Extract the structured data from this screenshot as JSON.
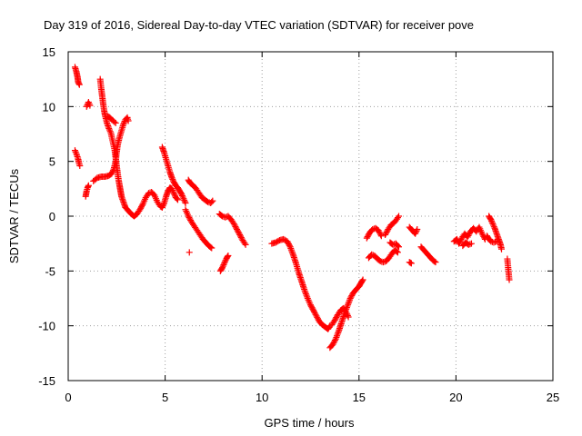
{
  "chart_data": {
    "type": "scatter",
    "title": "Day 319 of 2016, Sidereal Day-to-day VTEC variation (SDTVAR) for receiver pove",
    "xlabel": "GPS time / hours",
    "ylabel": "SDTVAR / TECUs",
    "xlim": [
      0,
      25
    ],
    "ylim": [
      -15,
      15
    ],
    "xticks": [
      "0",
      "5",
      "10",
      "15",
      "20",
      "25"
    ],
    "yticks": [
      "15",
      "10",
      "5",
      "0",
      "-5",
      "-10",
      "-15"
    ],
    "grid": true,
    "marker": "+",
    "color": "#ff0000",
    "series": [
      {
        "name": "SDTVAR",
        "segments": [
          [
            [
              0.35,
              13.6
            ],
            [
              0.42,
              13.2
            ],
            [
              0.48,
              12.7
            ],
            [
              0.52,
              12.2
            ],
            [
              0.58,
              12.0
            ]
          ],
          [
            [
              0.35,
              6.0
            ],
            [
              0.42,
              5.7
            ],
            [
              0.5,
              5.3
            ],
            [
              0.55,
              4.9
            ],
            [
              0.6,
              4.6
            ]
          ],
          [
            [
              0.9,
              1.8
            ],
            [
              0.95,
              2.3
            ],
            [
              1.0,
              2.6
            ],
            [
              1.05,
              2.8
            ]
          ],
          [
            [
              0.95,
              10.0
            ],
            [
              1.05,
              10.4
            ],
            [
              1.12,
              10.1
            ]
          ],
          [
            [
              1.3,
              3.2
            ],
            [
              1.5,
              3.5
            ],
            [
              1.7,
              3.6
            ],
            [
              1.9,
              3.6
            ],
            [
              2.1,
              3.7
            ],
            [
              2.25,
              3.9
            ],
            [
              2.35,
              4.3
            ],
            [
              2.45,
              5.0
            ],
            [
              2.5,
              5.8
            ],
            [
              2.55,
              6.5
            ],
            [
              2.65,
              7.2
            ],
            [
              2.75,
              7.8
            ],
            [
              2.85,
              8.4
            ],
            [
              2.95,
              8.8
            ],
            [
              3.05,
              9.0
            ],
            [
              3.1,
              8.7
            ]
          ],
          [
            [
              1.65,
              12.5
            ],
            [
              1.7,
              11.7
            ],
            [
              1.75,
              11.0
            ],
            [
              1.8,
              10.3
            ],
            [
              1.85,
              9.7
            ],
            [
              1.9,
              9.2
            ],
            [
              2.0,
              8.5
            ],
            [
              2.1,
              8.0
            ],
            [
              2.2,
              7.6
            ],
            [
              2.3,
              6.8
            ],
            [
              2.4,
              6.0
            ],
            [
              2.45,
              5.3
            ],
            [
              2.5,
              4.6
            ],
            [
              2.55,
              3.9
            ],
            [
              2.6,
              3.3
            ],
            [
              2.65,
              2.8
            ],
            [
              2.7,
              2.3
            ],
            [
              2.75,
              1.8
            ],
            [
              2.85,
              1.3
            ],
            [
              2.95,
              0.8
            ],
            [
              3.1,
              0.5
            ],
            [
              3.25,
              0.2
            ],
            [
              3.4,
              0.0
            ],
            [
              3.55,
              0.2
            ],
            [
              3.7,
              0.6
            ],
            [
              3.85,
              1.1
            ],
            [
              4.0,
              1.7
            ],
            [
              4.15,
              2.1
            ],
            [
              4.3,
              2.2
            ],
            [
              4.45,
              1.9
            ],
            [
              4.6,
              1.3
            ],
            [
              4.75,
              0.9
            ],
            [
              4.85,
              0.8
            ],
            [
              4.95,
              1.2
            ],
            [
              5.05,
              1.8
            ],
            [
              5.15,
              2.3
            ],
            [
              5.25,
              2.6
            ],
            [
              5.35,
              2.5
            ],
            [
              5.45,
              2.1
            ],
            [
              5.55,
              1.7
            ],
            [
              5.65,
              1.5
            ]
          ],
          [
            [
              2.05,
              9.1
            ],
            [
              2.15,
              9.0
            ],
            [
              2.25,
              8.8
            ],
            [
              2.45,
              8.5
            ]
          ],
          [
            [
              4.85,
              6.3
            ],
            [
              4.95,
              5.8
            ],
            [
              5.05,
              5.2
            ],
            [
              5.15,
              4.6
            ],
            [
              5.25,
              4.0
            ],
            [
              5.35,
              3.5
            ],
            [
              5.45,
              3.1
            ],
            [
              5.55,
              2.8
            ],
            [
              5.65,
              2.6
            ],
            [
              5.75,
              2.3
            ],
            [
              5.85,
              2.0
            ],
            [
              5.95,
              1.6
            ],
            [
              6.05,
              1.2
            ]
          ],
          [
            [
              6.2,
              3.3
            ],
            [
              6.3,
              3.0
            ],
            [
              6.45,
              2.8
            ],
            [
              6.6,
              2.5
            ],
            [
              6.75,
              2.1
            ],
            [
              6.9,
              1.7
            ],
            [
              7.05,
              1.5
            ],
            [
              7.2,
              1.3
            ],
            [
              7.35,
              1.2
            ],
            [
              7.45,
              1.4
            ]
          ],
          [
            [
              6.05,
              0.6
            ],
            [
              6.2,
              0.0
            ],
            [
              6.35,
              -0.5
            ],
            [
              6.5,
              -0.9
            ],
            [
              6.65,
              -1.3
            ],
            [
              6.8,
              -1.7
            ],
            [
              6.95,
              -2.1
            ],
            [
              7.1,
              -2.4
            ],
            [
              7.25,
              -2.7
            ],
            [
              7.4,
              -2.9
            ]
          ],
          [
            [
              6.25,
              -3.3
            ]
          ],
          [
            [
              7.8,
              0.2
            ],
            [
              7.95,
              0.0
            ],
            [
              8.1,
              -0.1
            ],
            [
              8.25,
              0.0
            ],
            [
              8.4,
              -0.3
            ],
            [
              8.55,
              -0.7
            ],
            [
              8.7,
              -1.2
            ],
            [
              8.85,
              -1.7
            ],
            [
              9.0,
              -2.2
            ],
            [
              9.15,
              -2.6
            ]
          ],
          [
            [
              7.85,
              -5.0
            ],
            [
              7.95,
              -4.7
            ],
            [
              8.05,
              -4.3
            ],
            [
              8.15,
              -3.9
            ],
            [
              8.25,
              -3.6
            ]
          ],
          [
            [
              10.5,
              -2.5
            ],
            [
              10.7,
              -2.4
            ],
            [
              10.9,
              -2.2
            ],
            [
              11.1,
              -2.1
            ],
            [
              11.3,
              -2.3
            ],
            [
              11.45,
              -2.8
            ],
            [
              11.6,
              -3.5
            ],
            [
              11.75,
              -4.3
            ],
            [
              11.9,
              -5.2
            ],
            [
              12.05,
              -6.0
            ],
            [
              12.2,
              -6.8
            ],
            [
              12.35,
              -7.5
            ],
            [
              12.5,
              -8.1
            ],
            [
              12.65,
              -8.6
            ],
            [
              12.8,
              -9.1
            ],
            [
              12.95,
              -9.6
            ],
            [
              13.1,
              -9.9
            ],
            [
              13.25,
              -10.1
            ],
            [
              13.4,
              -10.3
            ],
            [
              13.5,
              -10.0
            ]
          ],
          [
            [
              13.5,
              -12.0
            ],
            [
              13.65,
              -11.7
            ],
            [
              13.8,
              -11.2
            ],
            [
              13.95,
              -10.5
            ],
            [
              14.1,
              -9.7
            ],
            [
              14.25,
              -8.9
            ],
            [
              14.4,
              -8.2
            ],
            [
              14.55,
              -7.5
            ],
            [
              14.7,
              -7.0
            ],
            [
              14.85,
              -6.7
            ],
            [
              15.0,
              -6.4
            ],
            [
              15.1,
              -6.1
            ],
            [
              15.2,
              -5.8
            ]
          ],
          [
            [
              13.6,
              -9.9
            ],
            [
              13.75,
              -9.5
            ],
            [
              13.9,
              -9.0
            ],
            [
              14.05,
              -8.6
            ],
            [
              14.2,
              -8.4
            ],
            [
              14.35,
              -8.8
            ],
            [
              14.45,
              -9.2
            ]
          ],
          [
            [
              15.4,
              -2.0
            ],
            [
              15.55,
              -1.5
            ],
            [
              15.7,
              -1.2
            ],
            [
              15.85,
              -1.1
            ],
            [
              16.0,
              -1.3
            ],
            [
              16.15,
              -1.8
            ]
          ],
          [
            [
              15.5,
              -3.8
            ],
            [
              15.65,
              -3.5
            ],
            [
              15.8,
              -3.6
            ],
            [
              15.95,
              -3.9
            ],
            [
              16.1,
              -4.1
            ],
            [
              16.25,
              -4.2
            ],
            [
              16.4,
              -4.1
            ],
            [
              16.55,
              -3.8
            ],
            [
              16.7,
              -3.4
            ],
            [
              16.85,
              -3.1
            ],
            [
              17.0,
              -3.3
            ]
          ],
          [
            [
              16.35,
              -1.7
            ],
            [
              16.5,
              -1.2
            ],
            [
              16.65,
              -0.8
            ],
            [
              16.8,
              -0.6
            ],
            [
              16.9,
              -0.4
            ],
            [
              17.05,
              0.0
            ]
          ],
          [
            [
              16.6,
              -2.4
            ],
            [
              16.75,
              -2.6
            ],
            [
              16.9,
              -2.5
            ],
            [
              17.05,
              -2.8
            ]
          ],
          [
            [
              17.6,
              -1.0
            ],
            [
              17.75,
              -1.3
            ],
            [
              17.9,
              -1.6
            ],
            [
              18.0,
              -1.2
            ]
          ],
          [
            [
              17.6,
              -4.2
            ],
            [
              17.7,
              -4.3
            ]
          ],
          [
            [
              18.2,
              -2.8
            ],
            [
              18.35,
              -3.1
            ],
            [
              18.5,
              -3.4
            ],
            [
              18.65,
              -3.7
            ],
            [
              18.8,
              -4.0
            ],
            [
              18.95,
              -4.2
            ]
          ],
          [
            [
              19.9,
              -2.3
            ],
            [
              20.05,
              -2.1
            ],
            [
              20.15,
              -2.5
            ],
            [
              20.3,
              -2.0
            ],
            [
              20.45,
              -1.6
            ],
            [
              20.6,
              -1.9
            ],
            [
              20.75,
              -1.4
            ],
            [
              20.9,
              -1.1
            ],
            [
              21.05,
              -1.4
            ],
            [
              21.2,
              -1.0
            ],
            [
              21.35,
              -1.6
            ],
            [
              21.5,
              -2.1
            ]
          ],
          [
            [
              20.35,
              -2.7
            ],
            [
              20.5,
              -2.4
            ],
            [
              20.65,
              -2.6
            ],
            [
              20.8,
              -2.5
            ]
          ],
          [
            [
              21.7,
              0.0
            ],
            [
              21.8,
              -0.3
            ],
            [
              21.9,
              -0.7
            ],
            [
              22.0,
              -1.1
            ],
            [
              22.1,
              -1.6
            ],
            [
              22.2,
              -2.1
            ],
            [
              22.3,
              -2.6
            ],
            [
              22.35,
              -3.0
            ]
          ],
          [
            [
              21.6,
              -1.8
            ],
            [
              21.7,
              -2.1
            ],
            [
              21.8,
              -2.3
            ],
            [
              21.95,
              -2.4
            ],
            [
              22.1,
              -2.3
            ]
          ],
          [
            [
              22.65,
              -3.9
            ],
            [
              22.75,
              -5.8
            ]
          ]
        ]
      }
    ]
  }
}
